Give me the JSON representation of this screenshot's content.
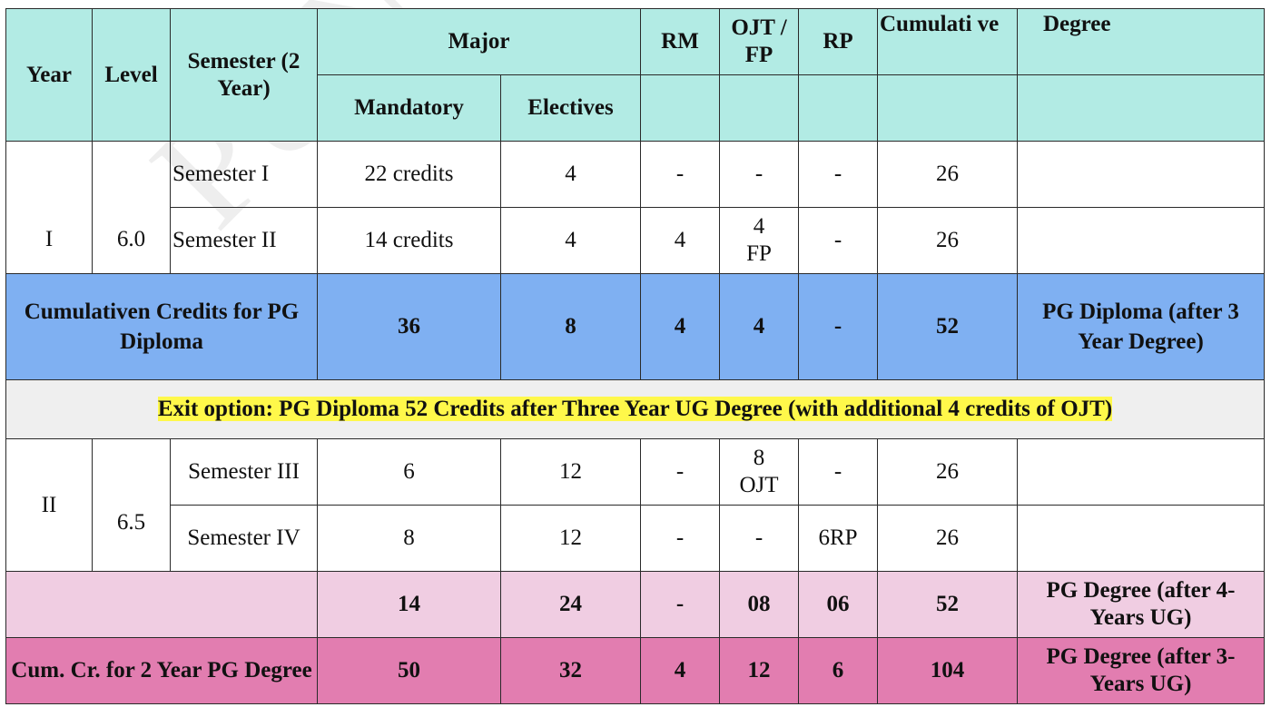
{
  "watermark": "PUN   202",
  "header": {
    "year": "Year",
    "level": "Level",
    "semester": "Semester (2 Year)",
    "major": "Major",
    "mandatory": "Mandatory",
    "electives": "Electives",
    "rm": "RM",
    "ojt_fp": "OJT / FP",
    "rp": "RP",
    "cumulative": "Cumulati ve",
    "degree": "Degree"
  },
  "year1": {
    "year": "I",
    "level": "6.0",
    "rows": [
      {
        "semester": "Semester I",
        "mandatory": "22 credits",
        "electives": "4",
        "rm": "-",
        "ojt": "-",
        "rp": "-",
        "cumulative": "26",
        "degree": ""
      },
      {
        "semester": "Semester II",
        "mandatory": "14 credits",
        "electives": "4",
        "rm": "4",
        "ojt": "4\nFP",
        "rp": "-",
        "cumulative": "26",
        "degree": ""
      }
    ]
  },
  "diploma_total": {
    "label": "Cumulativen Credits for PG Diploma",
    "mandatory": "36",
    "electives": "8",
    "rm": "4",
    "ojt": "4",
    "rp": "-",
    "cumulative": "52",
    "degree": "PG Diploma (after 3 Year Degree)"
  },
  "exit_option": "Exit option: PG Diploma 52 Credits after Three Year UG Degree (with additional 4 credits of OJT)",
  "year2": {
    "year": "II",
    "level": "6.5",
    "rows": [
      {
        "semester": "Semester III",
        "mandatory": "6",
        "electives": "12",
        "rm": "-",
        "ojt": "8\nOJT",
        "rp": "-",
        "cumulative": "26",
        "degree": ""
      },
      {
        "semester": "Semester IV",
        "mandatory": "8",
        "electives": "12",
        "rm": "-",
        "ojt": "-",
        "rp": "6RP",
        "cumulative": "26",
        "degree": ""
      }
    ]
  },
  "year2_total": {
    "label": "",
    "mandatory": "14",
    "electives": "24",
    "rm": "-",
    "ojt": "08",
    "rp": "06",
    "cumulative": "52",
    "degree": "PG Degree (after 4-Years UG)"
  },
  "pg_total": {
    "label": "Cum. Cr. for 2 Year PG Degree",
    "mandatory": "50",
    "electives": "32",
    "rm": "4",
    "ojt": "12",
    "rp": "6",
    "cumulative": "104",
    "degree": "PG Degree (after 3-Years UG)"
  },
  "colors": {
    "header": "#b2ebe4",
    "diploma_row": "#7fb0f2",
    "exit_row": "#efefef",
    "exit_highlight": "#fff84a",
    "year2_total_row": "#f0cde2",
    "pg_total_row": "#e27db0"
  }
}
